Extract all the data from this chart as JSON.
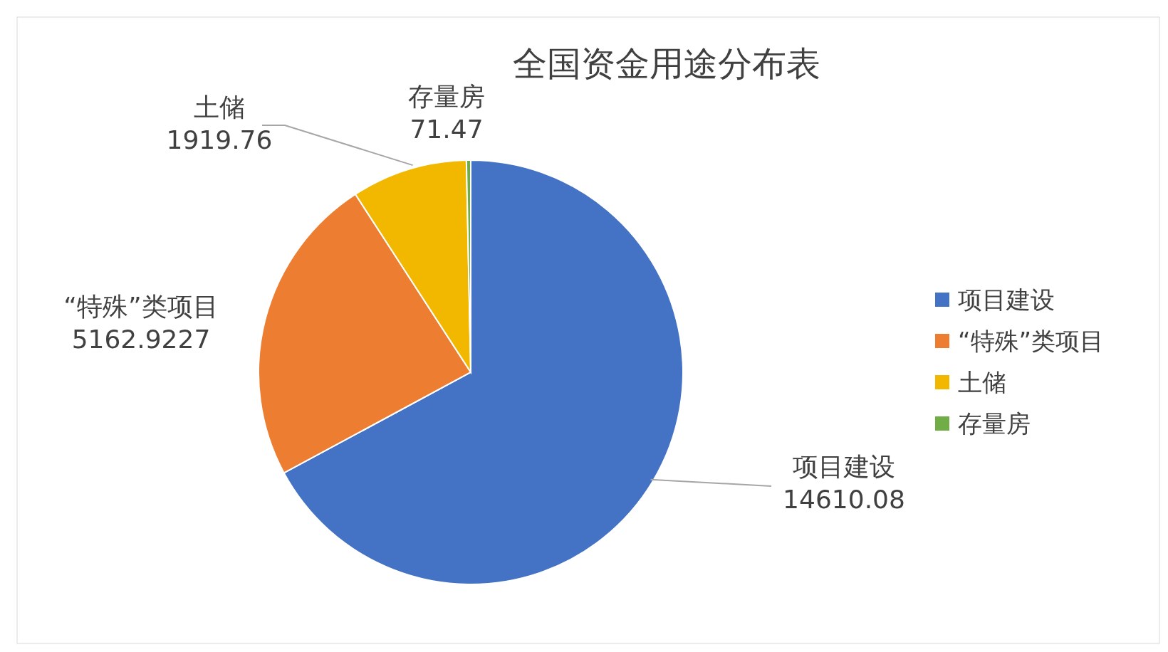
{
  "chart_data": {
    "type": "pie",
    "title": "全国资金用途分布表",
    "categories": [
      "项目建设",
      "“特殊”类项目",
      "土储",
      "存量房"
    ],
    "values": [
      14610.08,
      5162.9227,
      1919.76,
      71.47
    ],
    "colors": [
      "#4472c4",
      "#ed7d31",
      "#f2b800",
      "#70ad47"
    ],
    "data_labels": true,
    "legend": "right"
  }
}
